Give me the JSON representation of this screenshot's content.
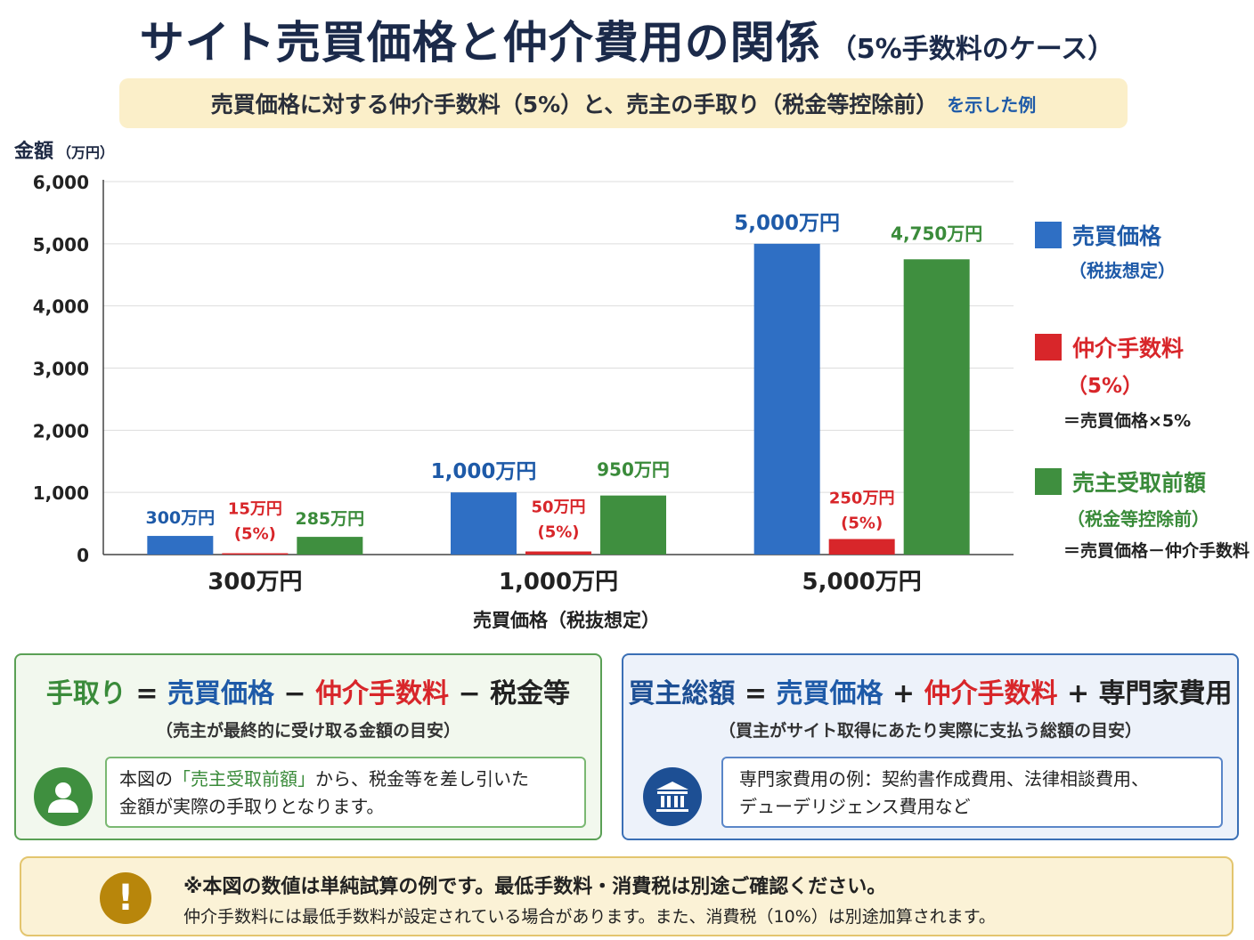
{
  "title": {
    "main": "サイト売買価格と仲介費用の関係",
    "sub": "（5%手数料のケース）"
  },
  "subtitle": {
    "main": "売買価格に対する仲介手数料（5%）と、売主の手取り（税金等控除前）",
    "tail": "を示した例"
  },
  "chart_data": {
    "type": "bar",
    "ylabel": "金額",
    "ylabel_unit": "（万円）",
    "xlabel": "売買価格（税抜想定）",
    "ylim": [
      0,
      6000
    ],
    "yticks": [
      "0",
      "1,000",
      "2,000",
      "3,000",
      "4,000",
      "5,000",
      "6,000"
    ],
    "grid": true,
    "legend_position": "right",
    "categories": [
      "300万円",
      "1,000万円",
      "5,000万円"
    ],
    "series": [
      {
        "name": "売買価格",
        "values": [
          300,
          1000,
          5000
        ],
        "labels": [
          "300万円",
          "1,000万円",
          "5,000万円"
        ],
        "color": "#2f6fc4"
      },
      {
        "name": "仲介手数料",
        "values": [
          15,
          50,
          250
        ],
        "labels": [
          "15万円",
          "50万円",
          "250万円"
        ],
        "sublabel": "(5%)",
        "color": "#d8262a"
      },
      {
        "name": "売主受取前額",
        "values": [
          285,
          950,
          4750
        ],
        "labels": [
          "285万円",
          "950万円",
          "4,750万円"
        ],
        "color": "#3f8f3f"
      }
    ]
  },
  "legend": [
    {
      "name": "売買価格",
      "sub": "（税抜想定）",
      "note": "",
      "color": "#2f6fc4"
    },
    {
      "name": "仲介手数料",
      "sub": "（5%）",
      "note": "＝売買価格×5%",
      "color": "#d8262a"
    },
    {
      "name": "売主受取前額",
      "sub": "（税金等控除前）",
      "note": "＝売買価格－仲介手数料",
      "color": "#3f8f3f"
    }
  ],
  "card_left": {
    "formula": {
      "t1": "手取り",
      "eq": "=",
      "t2": "売買価格",
      "m1": "−",
      "t3": "仲介手数料",
      "m2": "−",
      "t4": "税金等"
    },
    "sub": "（売主が最終的に受け取る金額の目安）",
    "icon": "user-icon",
    "box": {
      "pre": "本図の",
      "highlight": "「売主受取前額」",
      "post": "から、税金等を差し引いた",
      "line2": "金額が実際の手取りとなります。"
    }
  },
  "card_right": {
    "formula": {
      "t1": "買主総額",
      "eq": "=",
      "t2": "売買価格",
      "p1": "+",
      "t3": "仲介手数料",
      "p2": "+",
      "t4": "専門家費用"
    },
    "sub": "（買主がサイト取得にあたり実際に支払う総額の目安）",
    "icon": "bank-icon",
    "box": {
      "line1": "専門家費用の例：契約書作成費用、法律相談費用、",
      "line2": "デューデリジェンス費用など"
    }
  },
  "warning": {
    "icon": "exclamation-icon",
    "line1": "※本図の数値は単純試算の例です。最低手数料・消費税は別途ご確認ください。",
    "line2": "仲介手数料には最低手数料が設定されている場合があります。また、消費税（10%）は別途加算されます。"
  }
}
